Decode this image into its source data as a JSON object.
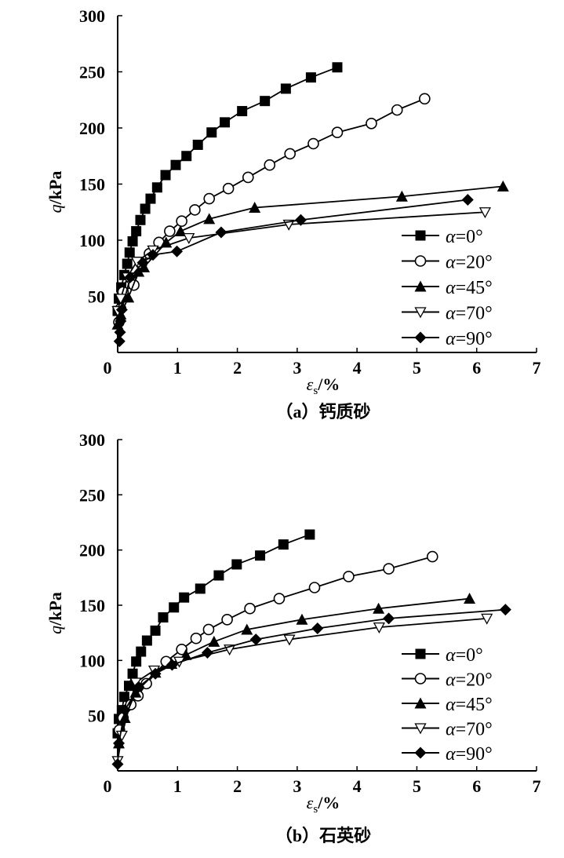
{
  "chart_data": [
    {
      "type": "line",
      "title": "",
      "caption": "（a）钙质砂",
      "xlabel": "εs/%",
      "xlabel_main": "ε",
      "xlabel_sub": "s",
      "xlabel_unit": "/%",
      "ylabel": "q/kPa",
      "ylabel_var": "q",
      "ylabel_unit": "/kPa",
      "xlim": [
        0,
        7
      ],
      "ylim": [
        0,
        300
      ],
      "xticks": [
        "0",
        "1",
        "2",
        "3",
        "4",
        "5",
        "6",
        "7"
      ],
      "yticks": [
        "50",
        "100",
        "150",
        "200",
        "250",
        "300"
      ],
      "legend_position": "right",
      "series": [
        {
          "name": "α=0°",
          "label": "=0°",
          "marker": "square",
          "points": [
            [
              0,
              37
            ],
            [
              0.02,
              48
            ],
            [
              0.06,
              58
            ],
            [
              0.11,
              69
            ],
            [
              0.16,
              79
            ],
            [
              0.2,
              89
            ],
            [
              0.25,
              99
            ],
            [
              0.31,
              108
            ],
            [
              0.38,
              118
            ],
            [
              0.46,
              128
            ],
            [
              0.55,
              137
            ],
            [
              0.66,
              147
            ],
            [
              0.8,
              158
            ],
            [
              0.97,
              167
            ],
            [
              1.15,
              175
            ],
            [
              1.34,
              185
            ],
            [
              1.57,
              196
            ],
            [
              1.79,
              205
            ],
            [
              2.08,
              215
            ],
            [
              2.46,
              224
            ],
            [
              2.81,
              235
            ],
            [
              3.23,
              245
            ],
            [
              3.67,
              254
            ]
          ]
        },
        {
          "name": "α=20°",
          "label": "=20°",
          "marker": "circle",
          "points": [
            [
              0.02,
              27
            ],
            [
              0.05,
              39
            ],
            [
              0.09,
              54
            ],
            [
              0.27,
              60
            ],
            [
              0.4,
              79
            ],
            [
              0.53,
              88
            ],
            [
              0.69,
              98
            ],
            [
              0.87,
              108
            ],
            [
              1.07,
              117
            ],
            [
              1.29,
              127
            ],
            [
              1.53,
              137
            ],
            [
              1.85,
              146
            ],
            [
              2.18,
              156
            ],
            [
              2.54,
              167
            ],
            [
              2.88,
              177
            ],
            [
              3.27,
              186
            ],
            [
              3.67,
              196
            ],
            [
              4.24,
              204
            ],
            [
              4.67,
              216
            ],
            [
              5.13,
              226
            ]
          ]
        },
        {
          "name": "α=45°",
          "label": "=45°",
          "marker": "triangle-up",
          "points": [
            [
              0,
              25
            ],
            [
              0.05,
              34
            ],
            [
              0.18,
              49
            ],
            [
              0.35,
              72
            ],
            [
              0.44,
              76
            ],
            [
              0.81,
              98
            ],
            [
              1.05,
              108
            ],
            [
              1.53,
              119
            ],
            [
              2.29,
              129
            ],
            [
              4.75,
              139
            ],
            [
              6.44,
              148
            ]
          ]
        },
        {
          "name": "α=70°",
          "label": "=70°",
          "marker": "triangle-down",
          "points": [
            [
              0,
              37
            ],
            [
              0.05,
              48
            ],
            [
              0.16,
              67
            ],
            [
              0.32,
              81
            ],
            [
              0.59,
              91
            ],
            [
              1.19,
              102
            ],
            [
              2.86,
              114
            ],
            [
              6.14,
              125
            ]
          ]
        },
        {
          "name": "α=90°",
          "label": "=90°",
          "marker": "diamond",
          "points": [
            [
              0.03,
              10
            ],
            [
              0.04,
              18
            ],
            [
              0.05,
              28
            ],
            [
              0.07,
              38
            ],
            [
              0.21,
              67
            ],
            [
              0.42,
              80
            ],
            [
              0.59,
              87
            ],
            [
              0.99,
              90
            ],
            [
              1.73,
              107
            ],
            [
              3.06,
              118
            ],
            [
              5.85,
              136
            ]
          ]
        }
      ]
    },
    {
      "type": "line",
      "title": "",
      "caption": "（b）石英砂",
      "xlabel": "εs/%",
      "xlabel_main": "ε",
      "xlabel_sub": "s",
      "xlabel_unit": "/%",
      "ylabel": "q/kPa",
      "ylabel_var": "q",
      "ylabel_unit": "/kPa",
      "xlim": [
        0,
        7
      ],
      "ylim": [
        0,
        300
      ],
      "xticks": [
        "0",
        "1",
        "2",
        "3",
        "4",
        "5",
        "6",
        "7"
      ],
      "yticks": [
        "50",
        "100",
        "150",
        "200",
        "250",
        "300"
      ],
      "legend_position": "right",
      "series": [
        {
          "name": "α=0°",
          "label": "=0°",
          "marker": "square",
          "points": [
            [
              0,
              34
            ],
            [
              0.02,
              47
            ],
            [
              0.07,
              55
            ],
            [
              0.11,
              67
            ],
            [
              0.19,
              77
            ],
            [
              0.25,
              88
            ],
            [
              0.31,
              99
            ],
            [
              0.39,
              108
            ],
            [
              0.49,
              118
            ],
            [
              0.63,
              127
            ],
            [
              0.76,
              139
            ],
            [
              0.94,
              148
            ],
            [
              1.11,
              157
            ],
            [
              1.38,
              165
            ],
            [
              1.69,
              177
            ],
            [
              1.99,
              187
            ],
            [
              2.38,
              195
            ],
            [
              2.77,
              205
            ],
            [
              3.21,
              214
            ]
          ]
        },
        {
          "name": "α=20°",
          "label": "=20°",
          "marker": "circle",
          "points": [
            [
              0.03,
              37
            ],
            [
              0.09,
              48
            ],
            [
              0.22,
              60
            ],
            [
              0.34,
              68
            ],
            [
              0.48,
              79
            ],
            [
              0.81,
              99
            ],
            [
              1.07,
              110
            ],
            [
              1.31,
              120
            ],
            [
              1.52,
              128
            ],
            [
              1.83,
              137
            ],
            [
              2.21,
              147
            ],
            [
              2.7,
              156
            ],
            [
              3.29,
              166
            ],
            [
              3.86,
              176
            ],
            [
              4.53,
              183
            ],
            [
              5.26,
              194
            ]
          ]
        },
        {
          "name": "α=45°",
          "label": "=45°",
          "marker": "triangle-up",
          "points": [
            [
              0.02,
              25
            ],
            [
              0.12,
              48
            ],
            [
              0.3,
              71
            ],
            [
              0.63,
              89
            ],
            [
              0.9,
              97
            ],
            [
              1.14,
              105
            ],
            [
              1.61,
              117
            ],
            [
              2.16,
              128
            ],
            [
              3.08,
              137
            ],
            [
              4.36,
              147
            ],
            [
              5.88,
              156
            ]
          ]
        },
        {
          "name": "α=70°",
          "label": "=70°",
          "marker": "triangle-down",
          "points": [
            [
              0,
              9
            ],
            [
              0.07,
              32
            ],
            [
              0.3,
              80
            ],
            [
              0.61,
              91
            ],
            [
              1.03,
              99
            ],
            [
              1.87,
              110
            ],
            [
              2.87,
              119
            ],
            [
              4.37,
              130
            ],
            [
              6.17,
              138
            ]
          ]
        },
        {
          "name": "α=90°",
          "label": "=90°",
          "marker": "diamond",
          "points": [
            [
              0,
              6
            ],
            [
              0.02,
              25
            ],
            [
              0.12,
              55
            ],
            [
              0.35,
              76
            ],
            [
              0.63,
              88
            ],
            [
              0.91,
              96
            ],
            [
              1.5,
              107
            ],
            [
              2.31,
              119
            ],
            [
              3.34,
              129
            ],
            [
              4.53,
              138
            ],
            [
              6.48,
              146
            ]
          ]
        }
      ]
    }
  ]
}
